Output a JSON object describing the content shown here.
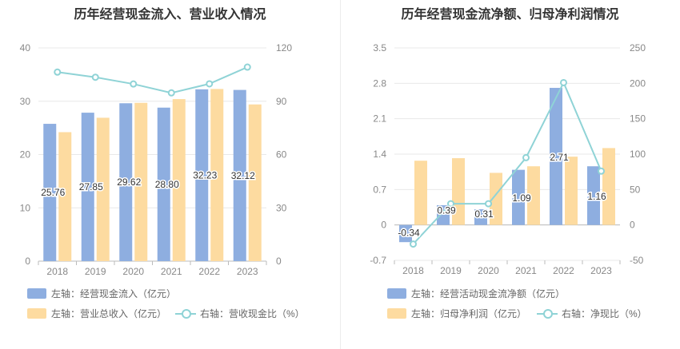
{
  "colors": {
    "bar_primary": "#8eaee0",
    "bar_secondary": "#fddba0",
    "line": "#8fd3d6",
    "grid": "#e8e8e8",
    "axis_text": "#888888"
  },
  "chart_data": [
    {
      "type": "bar",
      "title": "历年经营现金流入、营业收入情况",
      "categories": [
        "2018",
        "2019",
        "2020",
        "2021",
        "2022",
        "2023"
      ],
      "y_left": {
        "min": 0,
        "max": 40,
        "ticks": [
          "0",
          "10",
          "20",
          "30",
          "40"
        ]
      },
      "y_right": {
        "min": 0,
        "max": 120,
        "ticks": [
          "0",
          "30",
          "60",
          "90",
          "120"
        ]
      },
      "series": [
        {
          "name": "左轴：经营现金流入（亿元）",
          "kind": "bar",
          "axis": "left",
          "values": [
            25.76,
            27.85,
            29.62,
            28.8,
            32.23,
            32.12
          ],
          "labels": [
            "25.76",
            "27.85",
            "29.62",
            "28.80",
            "32.23",
            "32.12"
          ]
        },
        {
          "name": "左轴：营业总收入（亿元）",
          "kind": "bar",
          "axis": "left",
          "values": [
            24.2,
            26.9,
            29.7,
            30.4,
            32.3,
            29.4
          ]
        },
        {
          "name": "右轴：营收现金比（%）",
          "kind": "line",
          "axis": "right",
          "values": [
            106.4,
            103.5,
            99.7,
            94.7,
            99.8,
            109.2
          ]
        }
      ],
      "grid": true,
      "legend": "bottom"
    },
    {
      "type": "bar",
      "title": "历年经营现金流净额、归母净利润情况",
      "categories": [
        "2018",
        "2019",
        "2020",
        "2021",
        "2022",
        "2023"
      ],
      "y_left": {
        "min": -0.7,
        "max": 3.5,
        "ticks": [
          "-0.7",
          "0",
          "0.7",
          "1.4",
          "2.1",
          "2.8",
          "3.5"
        ]
      },
      "y_right": {
        "min": -50,
        "max": 250,
        "ticks": [
          "-50",
          "0",
          "50",
          "100",
          "150",
          "200",
          "250"
        ]
      },
      "series": [
        {
          "name": "左轴：经营活动现金流净额（亿元）",
          "kind": "bar",
          "axis": "left",
          "values": [
            -0.34,
            0.39,
            0.31,
            1.09,
            2.71,
            1.16
          ],
          "labels": [
            "-0.34",
            "0.39",
            "0.31",
            "1.09",
            "2.71",
            "1.16"
          ]
        },
        {
          "name": "左轴：归母净利润（亿元）",
          "kind": "bar",
          "axis": "left",
          "values": [
            1.27,
            1.32,
            1.03,
            1.16,
            1.35,
            1.52
          ]
        },
        {
          "name": "右轴：净现比（%）",
          "kind": "line",
          "axis": "right",
          "values": [
            -27,
            30,
            30,
            95,
            201,
            76
          ]
        }
      ],
      "grid": true,
      "legend": "bottom"
    }
  ]
}
